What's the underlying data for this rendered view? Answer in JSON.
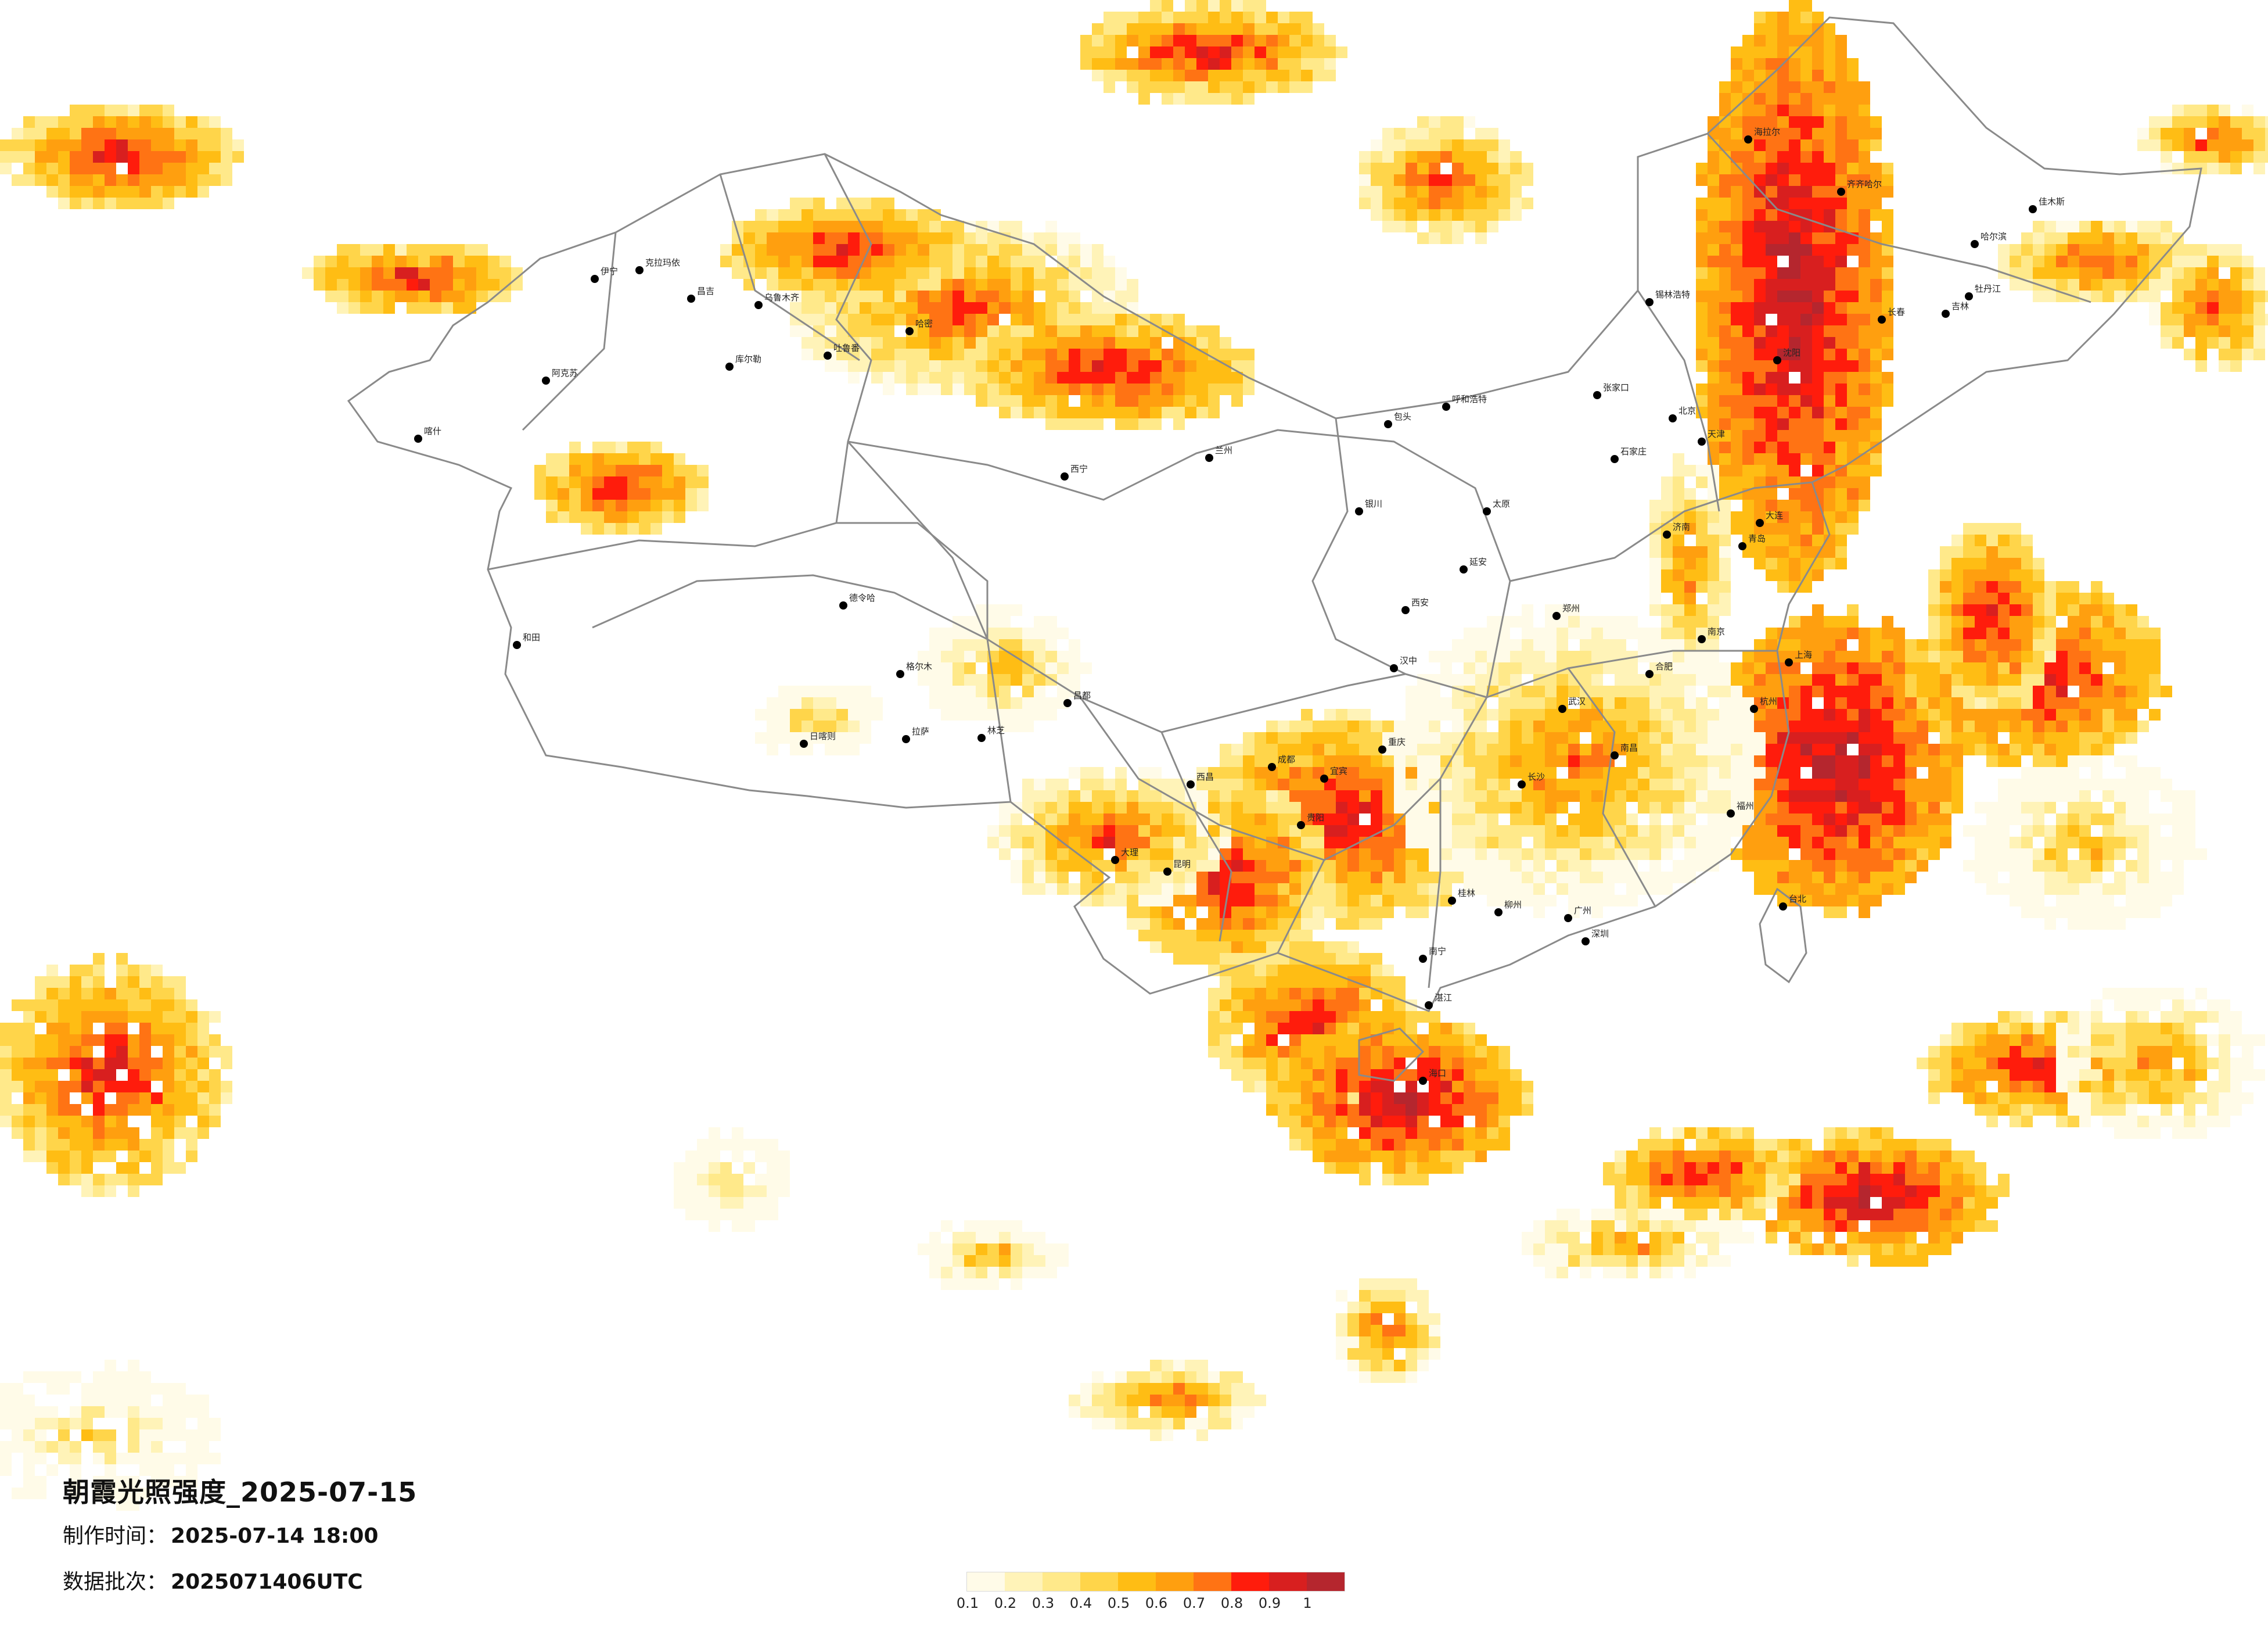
{
  "title": "朝霞光照强度_2025-07-15",
  "production_time": {
    "label": "制作时间：",
    "value": "2025-07-14 18:00"
  },
  "data_batch": {
    "label": "数据批次：",
    "value": "2025071406UTC"
  },
  "legend": {
    "ticks": [
      "0.1",
      "0.2",
      "0.3",
      "0.4",
      "0.5",
      "0.6",
      "0.7",
      "0.8",
      "0.9",
      "1"
    ],
    "colors": [
      "#fffbe8",
      "#fff3b8",
      "#ffe98a",
      "#ffd54a",
      "#ffbd14",
      "#ff9f0f",
      "#ff7314",
      "#ff1c0c",
      "#d81f1f",
      "#b5262e"
    ]
  },
  "colors": {
    "background": "#ffffff",
    "boundary": "#8a8a8a",
    "city_dot": "#000000"
  },
  "cities": [
    {
      "name": "伊宁"
    },
    {
      "name": "昌吉"
    },
    {
      "name": "乌鲁木齐"
    },
    {
      "name": "吐鲁番"
    },
    {
      "name": "哈密"
    },
    {
      "name": "克拉玛依"
    },
    {
      "name": "库尔勒"
    },
    {
      "name": "阿克苏"
    },
    {
      "name": "喀什"
    },
    {
      "name": "和田"
    },
    {
      "name": "格尔木"
    },
    {
      "name": "德令哈"
    },
    {
      "name": "西宁"
    },
    {
      "name": "兰州"
    },
    {
      "name": "拉萨"
    },
    {
      "name": "日喀则"
    },
    {
      "name": "林芝"
    },
    {
      "name": "昌都"
    },
    {
      "name": "西昌"
    },
    {
      "name": "昆明"
    },
    {
      "name": "大理"
    },
    {
      "name": "成都"
    },
    {
      "name": "重庆"
    },
    {
      "name": "贵阳"
    },
    {
      "name": "南宁"
    },
    {
      "name": "海口"
    },
    {
      "name": "广州"
    },
    {
      "name": "深圳"
    },
    {
      "name": "福州"
    },
    {
      "name": "台北"
    },
    {
      "name": "杭州"
    },
    {
      "name": "上海"
    },
    {
      "name": "南京"
    },
    {
      "name": "合肥"
    },
    {
      "name": "武汉"
    },
    {
      "name": "长沙"
    },
    {
      "name": "南昌"
    },
    {
      "name": "郑州"
    },
    {
      "name": "西安"
    },
    {
      "name": "太原"
    },
    {
      "name": "石家庄"
    },
    {
      "name": "北京"
    },
    {
      "name": "天津"
    },
    {
      "name": "济南"
    },
    {
      "name": "青岛"
    },
    {
      "name": "呼和浩特"
    },
    {
      "name": "包头"
    },
    {
      "name": "银川"
    },
    {
      "name": "沈阳"
    },
    {
      "name": "大连"
    },
    {
      "name": "长春"
    },
    {
      "name": "吉林"
    },
    {
      "name": "哈尔滨"
    },
    {
      "name": "齐齐哈尔"
    },
    {
      "name": "海拉尔"
    },
    {
      "name": "佳木斯"
    },
    {
      "name": "牡丹江"
    },
    {
      "name": "锡林浩特"
    },
    {
      "name": "张家口"
    },
    {
      "name": "延安"
    },
    {
      "name": "汉中"
    },
    {
      "name": "宜宾"
    },
    {
      "name": "桂林"
    },
    {
      "name": "柳州"
    },
    {
      "name": "湛江"
    }
  ]
}
